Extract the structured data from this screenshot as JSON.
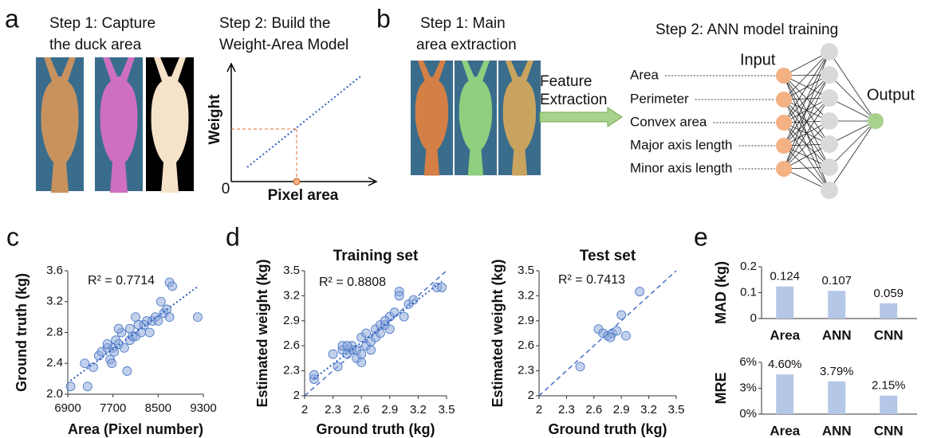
{
  "diagram_a": {
    "letter": "a",
    "step1": [
      "Step 1: Capture",
      "the duck area"
    ],
    "step2": [
      "Step 2: Build the",
      "Weight-Area Model"
    ],
    "y_axis": "Weight",
    "x_axis": "Pixel area",
    "origin": "0"
  },
  "diagram_b": {
    "letter": "b",
    "step1": [
      "Step 1: Main",
      "area extraction"
    ],
    "arrow_label": [
      "Feature",
      "Extraction"
    ],
    "step2": "Step 2: ANN model training",
    "input": "Input",
    "output": "Output",
    "features": [
      "Area",
      "Perimeter",
      "Convex area",
      "Major axis length",
      "Minor axis length"
    ]
  },
  "chart_data": [
    {
      "type": "scatter",
      "panel": "c",
      "annotation": "R² = 0.7714",
      "xlabel": "Area (Pixel number)",
      "ylabel": "Ground truth (kg)",
      "color": "#8faadc",
      "trendline": true,
      "xlim": [
        6900,
        9300
      ],
      "xticks": [
        6900,
        7700,
        8500,
        9300
      ],
      "ylim": [
        2,
        3.6
      ],
      "yticks": [
        {
          "value": 2,
          "label": "2.0"
        },
        2.4,
        2.8,
        3.2,
        3.6
      ],
      "x": [
        6950,
        7250,
        7200,
        7350,
        7450,
        7500,
        7600,
        7650,
        7680,
        7700,
        7720,
        7750,
        7800,
        7850,
        7900,
        7950,
        8000,
        8000,
        8050,
        8100,
        8150,
        8200,
        8250,
        8300,
        8350,
        8400,
        8450,
        8500,
        8550,
        8600,
        8650,
        8700,
        8750,
        8700,
        9200,
        8100,
        7800,
        7600
      ],
      "values": [
        2.1,
        2.1,
        2.4,
        2.35,
        2.5,
        2.55,
        2.6,
        2.45,
        2.4,
        2.6,
        2.55,
        2.7,
        2.65,
        2.8,
        2.6,
        2.3,
        2.7,
        2.85,
        2.75,
        2.75,
        2.9,
        2.8,
        2.9,
        2.95,
        2.8,
        2.95,
        3.0,
        2.95,
        3.2,
        3.05,
        3.1,
        3.45,
        3.4,
        3.0,
        3.0,
        3.0,
        2.85,
        2.65
      ]
    },
    {
      "type": "scatter",
      "panel": "d",
      "title": "Training set",
      "annotation": "R² = 0.8808",
      "xlabel": "Ground truth (kg)",
      "ylabel": "Estimated weight (kg)",
      "color": "#8faadc",
      "trendline": true,
      "identity_line": true,
      "xlim": [
        2,
        3.5
      ],
      "xticks": [
        2,
        2.3,
        2.6,
        2.9,
        3.2,
        3.5
      ],
      "ylim": [
        2,
        3.5
      ],
      "yticks": [
        2,
        2.3,
        2.6,
        2.9,
        3.2,
        3.5
      ],
      "x": [
        2.1,
        2.1,
        2.3,
        2.35,
        2.4,
        2.4,
        2.45,
        2.5,
        2.5,
        2.55,
        2.55,
        2.6,
        2.6,
        2.6,
        2.65,
        2.7,
        2.7,
        2.75,
        2.75,
        2.8,
        2.8,
        2.85,
        2.9,
        2.9,
        2.95,
        3.0,
        3.0,
        3.05,
        3.1,
        3.15,
        3.4,
        3.45,
        2.85,
        2.65,
        2.45
      ],
      "values": [
        2.2,
        2.25,
        2.5,
        2.35,
        2.55,
        2.6,
        2.5,
        2.55,
        2.6,
        2.45,
        2.55,
        2.7,
        2.5,
        2.4,
        2.6,
        2.65,
        2.55,
        2.8,
        2.7,
        2.75,
        2.85,
        2.85,
        2.95,
        2.8,
        3.0,
        3.25,
        3.2,
        2.95,
        3.1,
        3.15,
        3.3,
        3.3,
        2.9,
        2.75,
        2.6
      ]
    },
    {
      "type": "scatter",
      "title": "Test set",
      "annotation": "R² = 0.7413",
      "xlabel": "Ground truth (kg)",
      "ylabel": "Estimated weight (kg)",
      "color": "#8faadc",
      "identity_line": true,
      "xlim": [
        2,
        3.5
      ],
      "xticks": [
        2,
        2.3,
        2.6,
        2.9,
        3.2,
        3.5
      ],
      "ylim": [
        2,
        3.5
      ],
      "yticks": [
        2,
        2.3,
        2.6,
        2.9,
        3.2,
        3.5
      ],
      "x": [
        2.45,
        2.65,
        2.7,
        2.75,
        2.8,
        2.85,
        2.9,
        2.95,
        3.1,
        2.78
      ],
      "values": [
        2.35,
        2.8,
        2.75,
        2.72,
        2.75,
        2.78,
        2.97,
        2.72,
        3.25,
        2.7
      ]
    },
    {
      "type": "bar",
      "panel": "e",
      "ylabel": "MAD (kg)",
      "color": "#b4c7e7",
      "categories": [
        "Area",
        "ANN",
        "CNN"
      ],
      "values": [
        0.124,
        0.107,
        0.059
      ],
      "ylim": [
        0,
        0.2
      ],
      "yticks": [
        0,
        0.1,
        0.2
      ]
    },
    {
      "type": "bar",
      "ylabel": "MRE",
      "color": "#b4c7e7",
      "categories": [
        "Area",
        "ANN",
        "CNN"
      ],
      "values": [
        4.6,
        3.79,
        2.15
      ],
      "value_labels": [
        "4.60%",
        "3.79%",
        "2.15%"
      ],
      "ylim": [
        0,
        6
      ],
      "yticks": [
        {
          "value": 0,
          "label": "0%"
        },
        {
          "value": 3,
          "label": "3%"
        },
        {
          "value": 6,
          "label": "6%"
        }
      ]
    }
  ]
}
